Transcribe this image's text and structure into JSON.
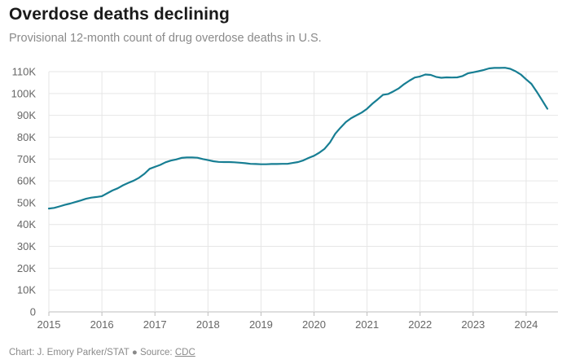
{
  "title": "Overdose deaths declining",
  "subtitle": "Provisional 12-month count of drug overdose deaths in U.S.",
  "footer": {
    "credit": "Chart: J. Emory Parker/STAT",
    "separator": "●",
    "source_label": "Source:",
    "source_link": "CDC"
  },
  "colors": {
    "line": "#177e93",
    "grid": "#e6e6e6",
    "axis_text": "#666666"
  },
  "chart_data": {
    "type": "line",
    "title": "Overdose deaths declining",
    "subtitle": "Provisional 12-month count of drug overdose deaths in U.S.",
    "xlabel": "",
    "ylabel": "",
    "xlim": [
      2015,
      2024.6
    ],
    "ylim": [
      0,
      110000
    ],
    "grid": true,
    "y_ticks": [
      0,
      10000,
      20000,
      30000,
      40000,
      50000,
      60000,
      70000,
      80000,
      90000,
      100000,
      110000
    ],
    "y_tick_labels": [
      "0",
      "10K",
      "20K",
      "30K",
      "40K",
      "50K",
      "60K",
      "70K",
      "80K",
      "90K",
      "100K",
      "110K"
    ],
    "x_ticks": [
      2015,
      2016,
      2017,
      2018,
      2019,
      2020,
      2021,
      2022,
      2023,
      2024
    ],
    "x_tick_labels": [
      "2015",
      "2016",
      "2017",
      "2018",
      "2019",
      "2020",
      "2021",
      "2022",
      "2023",
      "2024"
    ],
    "series": [
      {
        "x": [
          2015.0,
          2015.1,
          2015.2,
          2015.3,
          2015.4,
          2015.5,
          2015.6,
          2015.7,
          2015.8,
          2015.9,
          2016.0,
          2016.1,
          2016.2,
          2016.3,
          2016.4,
          2016.5,
          2016.6,
          2016.7,
          2016.8,
          2016.9,
          2017.0,
          2017.1,
          2017.2,
          2017.3,
          2017.4,
          2017.5,
          2017.6,
          2017.7,
          2017.8,
          2017.9,
          2018.0,
          2018.1,
          2018.2,
          2018.3,
          2018.4,
          2018.5,
          2018.6,
          2018.7,
          2018.8,
          2018.9,
          2019.0,
          2019.1,
          2019.2,
          2019.3,
          2019.4,
          2019.5,
          2019.6,
          2019.7,
          2019.8,
          2019.9,
          2020.0,
          2020.1,
          2020.2,
          2020.3,
          2020.4,
          2020.5,
          2020.6,
          2020.7,
          2020.8,
          2020.9,
          2021.0,
          2021.1,
          2021.2,
          2021.3,
          2021.4,
          2021.5,
          2021.6,
          2021.7,
          2021.8,
          2021.9,
          2022.0,
          2022.1,
          2022.2,
          2022.3,
          2022.4,
          2022.5,
          2022.6,
          2022.7,
          2022.8,
          2022.9,
          2023.0,
          2023.1,
          2023.2,
          2023.3,
          2023.4,
          2023.5,
          2023.6,
          2023.7,
          2023.8,
          2023.9,
          2024.0,
          2024.1,
          2024.2,
          2024.3,
          2024.4
        ],
        "values": [
          47300,
          47600,
          48300,
          49000,
          49600,
          50300,
          51000,
          51800,
          52300,
          52600,
          53000,
          54300,
          55600,
          56600,
          58000,
          59100,
          60100,
          61400,
          63200,
          65500,
          66400,
          67300,
          68500,
          69300,
          69800,
          70500,
          70700,
          70700,
          70600,
          70000,
          69500,
          69000,
          68700,
          68600,
          68600,
          68500,
          68300,
          68100,
          67800,
          67700,
          67600,
          67600,
          67700,
          67700,
          67800,
          67800,
          68200,
          68600,
          69400,
          70500,
          71500,
          72900,
          74700,
          77600,
          81600,
          84400,
          86900,
          88700,
          90000,
          91300,
          93000,
          95300,
          97300,
          99400,
          99800,
          101000,
          102400,
          104300,
          105900,
          107300,
          107800,
          108700,
          108500,
          107600,
          107200,
          107400,
          107300,
          107400,
          108000,
          109200,
          109700,
          110200,
          110800,
          111500,
          111700,
          111700,
          111800,
          111300,
          110200,
          108700,
          106500,
          104400,
          100800,
          96900,
          93000
        ]
      }
    ]
  }
}
